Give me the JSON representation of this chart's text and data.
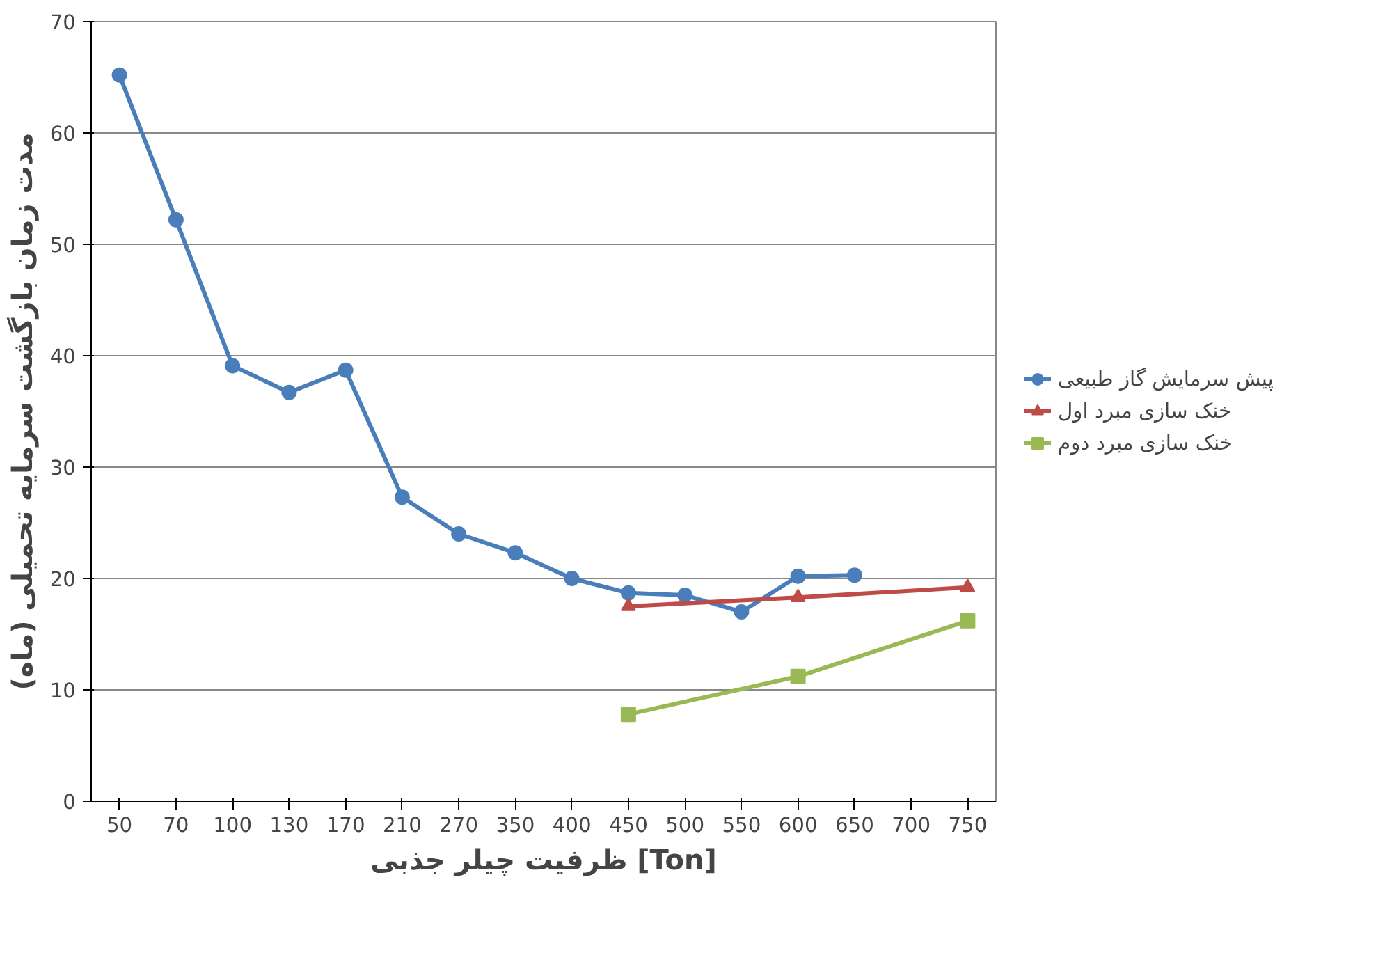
{
  "chart_data": {
    "type": "line",
    "xlabel": "ظرفیت چیلر جذبی [Ton]",
    "ylabel": "مدت زمان بازگشت سرمایه تحمیلی (ماه)",
    "categories": [
      "50",
      "70",
      "100",
      "130",
      "170",
      "210",
      "270",
      "350",
      "400",
      "450",
      "500",
      "550",
      "600",
      "650",
      "700",
      "750"
    ],
    "ylim": [
      0,
      70
    ],
    "yticks": [
      0,
      10,
      20,
      30,
      40,
      50,
      60,
      70
    ],
    "grid": "y",
    "legend": "right",
    "series": [
      {
        "name": "پیش سرمایش گاز طبیعی",
        "color": "#4a7ebb",
        "marker": "circle",
        "x": [
          "50",
          "70",
          "100",
          "130",
          "170",
          "210",
          "270",
          "350",
          "400",
          "450",
          "500",
          "550",
          "600",
          "650"
        ],
        "values": [
          65.2,
          52.2,
          39.1,
          36.7,
          38.7,
          27.3,
          24.0,
          22.3,
          20.0,
          18.7,
          18.5,
          17.0,
          20.2,
          20.3
        ]
      },
      {
        "name": "خنک سازی مبرد اول",
        "color": "#be4b48",
        "marker": "triangle",
        "x": [
          "450",
          "600",
          "750"
        ],
        "values": [
          17.5,
          18.3,
          19.2
        ]
      },
      {
        "name": "خنک سازی مبرد دوم",
        "color": "#98b954",
        "marker": "square",
        "x": [
          "450",
          "600",
          "750"
        ],
        "values": [
          7.8,
          11.2,
          16.2
        ]
      }
    ]
  }
}
